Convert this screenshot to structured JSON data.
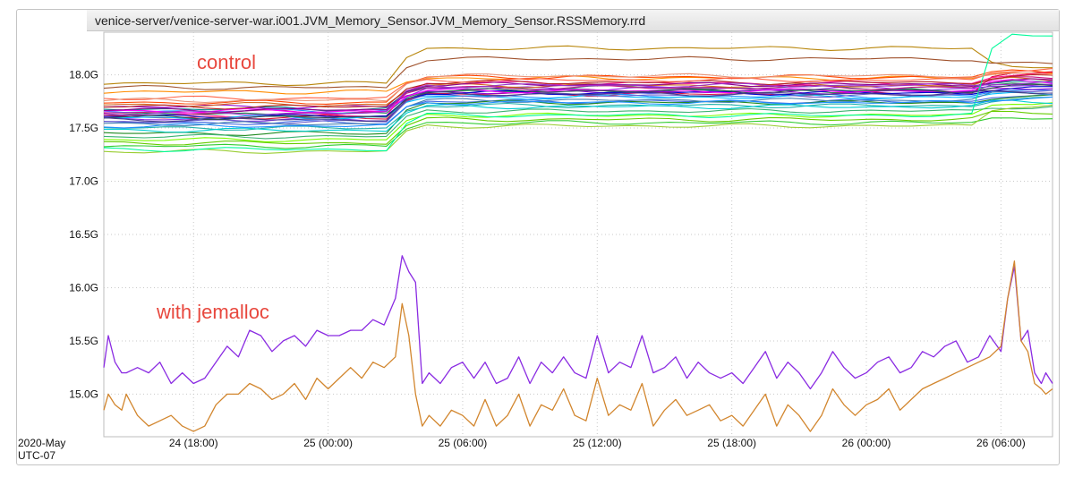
{
  "chart_data": {
    "type": "line",
    "title": "venice-server/venice-server-war.i001.JVM_Memory_Sensor.JVM_Memory_Sensor.RSSMemory.rrd",
    "y_ticks": [
      "15.0G",
      "15.5G",
      "16.0G",
      "16.5G",
      "17.0G",
      "17.5G",
      "18.0G"
    ],
    "y_tick_values": [
      15.0,
      15.5,
      16.0,
      16.5,
      17.0,
      17.5,
      18.0
    ],
    "ylim": [
      14.6,
      18.4
    ],
    "y_unit": "G",
    "x_ticks": [
      "24 (18:00)",
      "25 (00:00)",
      "25 (06:00)",
      "25 (12:00)",
      "25 (18:00)",
      "26 (00:00)",
      "26 (06:00)"
    ],
    "x_tick_hours": [
      18,
      24,
      30,
      36,
      42,
      48,
      54
    ],
    "xlim_hours": [
      14,
      56.3
    ],
    "x_origin_label": "2020-May",
    "timezone_label": "UTC-07",
    "grid": true,
    "annotations": [
      {
        "text": "control",
        "x": 14,
        "y": 18.15,
        "color": "#e8483e"
      },
      {
        "text": "with jemalloc",
        "x": 16.3,
        "y": 15.75,
        "color": "#e8483e"
      }
    ],
    "control_step_hours": [
      27.2,
      53.2
    ],
    "control_series": [
      {
        "color": "#2e8b57",
        "levels": [
          17.63,
          17.85,
          17.92
        ]
      },
      {
        "color": "#dc143c",
        "levels": [
          17.6,
          17.82,
          18.02
        ]
      },
      {
        "color": "#1e90ff",
        "levels": [
          17.66,
          17.8,
          17.85
        ]
      },
      {
        "color": "#ff8c00",
        "levels": [
          17.84,
          17.97,
          18.02
        ]
      },
      {
        "color": "#8a2be2",
        "levels": [
          17.58,
          17.87,
          17.9
        ]
      },
      {
        "color": "#008b8b",
        "levels": [
          17.68,
          17.88,
          17.93
        ]
      },
      {
        "color": "#b8860b",
        "levels": [
          17.92,
          18.25,
          18.08
        ]
      },
      {
        "color": "#4169e1",
        "levels": [
          17.55,
          17.75,
          17.8
        ]
      },
      {
        "color": "#c71585",
        "levels": [
          17.65,
          17.88,
          17.97
        ]
      },
      {
        "color": "#32cd32",
        "levels": [
          17.33,
          17.55,
          17.6
        ]
      },
      {
        "color": "#ff1493",
        "levels": [
          17.62,
          17.92,
          18.0
        ]
      },
      {
        "color": "#00bfff",
        "levels": [
          17.6,
          17.79,
          17.82
        ]
      },
      {
        "color": "#9400d3",
        "levels": [
          17.7,
          17.84,
          17.88
        ]
      },
      {
        "color": "#228b22",
        "levels": [
          17.45,
          17.74,
          17.79
        ]
      },
      {
        "color": "#ff4500",
        "levels": [
          17.74,
          17.98,
          18.03
        ]
      },
      {
        "color": "#6a5acd",
        "levels": [
          17.56,
          17.81,
          17.86
        ]
      },
      {
        "color": "#20b2aa",
        "levels": [
          17.5,
          17.71,
          17.77
        ]
      },
      {
        "color": "#d2691e",
        "levels": [
          17.72,
          17.9,
          17.96
        ]
      },
      {
        "color": "#7cfc00",
        "levels": [
          17.39,
          17.62,
          17.74
        ]
      },
      {
        "color": "#0000cd",
        "levels": [
          17.61,
          17.83,
          17.87
        ]
      },
      {
        "color": "#ff00ff",
        "levels": [
          17.66,
          17.85,
          17.94
        ]
      },
      {
        "color": "#3cb371",
        "levels": [
          17.42,
          17.66,
          17.7
        ]
      },
      {
        "color": "#b22222",
        "levels": [
          17.7,
          17.93,
          17.98
        ]
      },
      {
        "color": "#4682b4",
        "levels": [
          17.54,
          17.76,
          17.83
        ]
      },
      {
        "color": "#9acd32",
        "levels": [
          17.28,
          17.52,
          17.71
        ]
      },
      {
        "color": "#8b008b",
        "levels": [
          17.67,
          17.91,
          17.94
        ]
      },
      {
        "color": "#00ced1",
        "levels": [
          17.48,
          17.7,
          17.75
        ]
      },
      {
        "color": "#ff6347",
        "levels": [
          17.78,
          17.95,
          18.05
        ]
      },
      {
        "color": "#2f4f4f",
        "levels": [
          17.6,
          17.85,
          17.89
        ]
      },
      {
        "color": "#66cd00",
        "levels": [
          17.36,
          17.58,
          17.65
        ]
      },
      {
        "color": "#9932cc",
        "levels": [
          17.64,
          17.9,
          17.93
        ]
      },
      {
        "color": "#a0522d",
        "levels": [
          17.88,
          18.15,
          18.1
        ]
      },
      {
        "color": "#00fa9a",
        "levels": [
          17.3,
          17.62,
          18.38
        ]
      },
      {
        "color": "#1e90ff",
        "levels": [
          17.52,
          17.74,
          17.78
        ]
      },
      {
        "color": "#e9967a",
        "levels": [
          17.76,
          17.99,
          18.0
        ]
      },
      {
        "color": "#483d8b",
        "levels": [
          17.58,
          17.82,
          17.84
        ]
      }
    ],
    "series": [
      {
        "name": "",
        "color": "#8a2be2",
        "x": [
          14.0,
          14.2,
          14.5,
          14.8,
          15.0,
          15.5,
          16.0,
          16.5,
          17.0,
          17.5,
          18.0,
          18.5,
          19.0,
          19.5,
          20.0,
          20.5,
          21.0,
          21.5,
          22.0,
          22.5,
          23.0,
          23.5,
          24.0,
          24.5,
          25.0,
          25.5,
          26.0,
          26.5,
          27.0,
          27.3,
          27.6,
          27.9,
          28.2,
          28.5,
          29.0,
          29.5,
          30.0,
          30.5,
          31.0,
          31.5,
          32.0,
          32.5,
          33.0,
          33.5,
          34.0,
          34.5,
          35.0,
          35.5,
          36.0,
          36.5,
          37.0,
          37.5,
          38.0,
          38.5,
          39.0,
          39.5,
          40.0,
          40.5,
          41.0,
          41.5,
          42.0,
          42.5,
          43.0,
          43.5,
          44.0,
          44.5,
          45.0,
          45.5,
          46.0,
          46.5,
          47.0,
          47.5,
          48.0,
          48.5,
          49.0,
          49.5,
          50.0,
          50.5,
          51.0,
          51.5,
          52.0,
          52.5,
          53.0,
          53.5,
          54.0,
          54.3,
          54.6,
          54.9,
          55.2,
          55.5,
          55.8,
          56.0,
          56.3
        ],
        "values": [
          15.25,
          15.55,
          15.3,
          15.2,
          15.2,
          15.25,
          15.2,
          15.3,
          15.1,
          15.2,
          15.1,
          15.15,
          15.3,
          15.45,
          15.35,
          15.6,
          15.55,
          15.4,
          15.5,
          15.55,
          15.45,
          15.6,
          15.55,
          15.55,
          15.6,
          15.6,
          15.7,
          15.65,
          15.9,
          16.3,
          16.15,
          16.05,
          15.1,
          15.2,
          15.1,
          15.25,
          15.3,
          15.15,
          15.3,
          15.1,
          15.15,
          15.35,
          15.1,
          15.3,
          15.2,
          15.35,
          15.2,
          15.15,
          15.55,
          15.2,
          15.3,
          15.25,
          15.55,
          15.2,
          15.25,
          15.35,
          15.15,
          15.3,
          15.2,
          15.15,
          15.2,
          15.1,
          15.25,
          15.4,
          15.15,
          15.3,
          15.2,
          15.05,
          15.2,
          15.4,
          15.25,
          15.15,
          15.2,
          15.3,
          15.35,
          15.2,
          15.25,
          15.4,
          15.35,
          15.45,
          15.5,
          15.3,
          15.35,
          15.55,
          15.4,
          15.9,
          16.2,
          15.5,
          15.6,
          15.2,
          15.1,
          15.2,
          15.1
        ]
      },
      {
        "name": "",
        "color": "#d2862e",
        "x": [
          14.0,
          14.2,
          14.5,
          14.8,
          15.0,
          15.5,
          16.0,
          16.5,
          17.0,
          17.5,
          18.0,
          18.5,
          19.0,
          19.5,
          20.0,
          20.5,
          21.0,
          21.5,
          22.0,
          22.5,
          23.0,
          23.5,
          24.0,
          24.5,
          25.0,
          25.5,
          26.0,
          26.5,
          27.0,
          27.3,
          27.6,
          27.9,
          28.2,
          28.5,
          29.0,
          29.5,
          30.0,
          30.5,
          31.0,
          31.5,
          32.0,
          32.5,
          33.0,
          33.5,
          34.0,
          34.5,
          35.0,
          35.5,
          36.0,
          36.5,
          37.0,
          37.5,
          38.0,
          38.5,
          39.0,
          39.5,
          40.0,
          40.5,
          41.0,
          41.5,
          42.0,
          42.5,
          43.0,
          43.5,
          44.0,
          44.5,
          45.0,
          45.5,
          46.0,
          46.5,
          47.0,
          47.5,
          48.0,
          48.5,
          49.0,
          49.5,
          50.0,
          50.5,
          51.0,
          51.5,
          52.0,
          52.5,
          53.0,
          53.5,
          54.0,
          54.3,
          54.6,
          54.9,
          55.2,
          55.5,
          55.8,
          56.0,
          56.3
        ],
        "values": [
          14.85,
          15.0,
          14.9,
          14.85,
          15.0,
          14.8,
          14.7,
          14.75,
          14.8,
          14.7,
          14.65,
          14.7,
          14.9,
          15.0,
          15.0,
          15.1,
          15.05,
          14.95,
          15.0,
          15.1,
          14.95,
          15.15,
          15.05,
          15.15,
          15.25,
          15.15,
          15.3,
          15.25,
          15.35,
          15.85,
          15.55,
          15.0,
          14.7,
          14.8,
          14.7,
          14.85,
          14.8,
          14.7,
          14.95,
          14.7,
          14.8,
          15.0,
          14.7,
          14.9,
          14.85,
          15.05,
          14.8,
          14.75,
          15.15,
          14.8,
          14.9,
          14.85,
          15.1,
          14.7,
          14.85,
          14.95,
          14.8,
          14.85,
          14.9,
          14.75,
          14.8,
          14.7,
          14.85,
          15.0,
          14.7,
          14.9,
          14.8,
          14.65,
          14.8,
          15.05,
          14.9,
          14.8,
          14.9,
          14.95,
          15.05,
          14.85,
          14.95,
          15.05,
          15.1,
          15.15,
          15.2,
          15.25,
          15.3,
          15.35,
          15.45,
          15.9,
          16.25,
          15.5,
          15.4,
          15.1,
          15.05,
          15.0,
          15.05
        ]
      }
    ]
  }
}
